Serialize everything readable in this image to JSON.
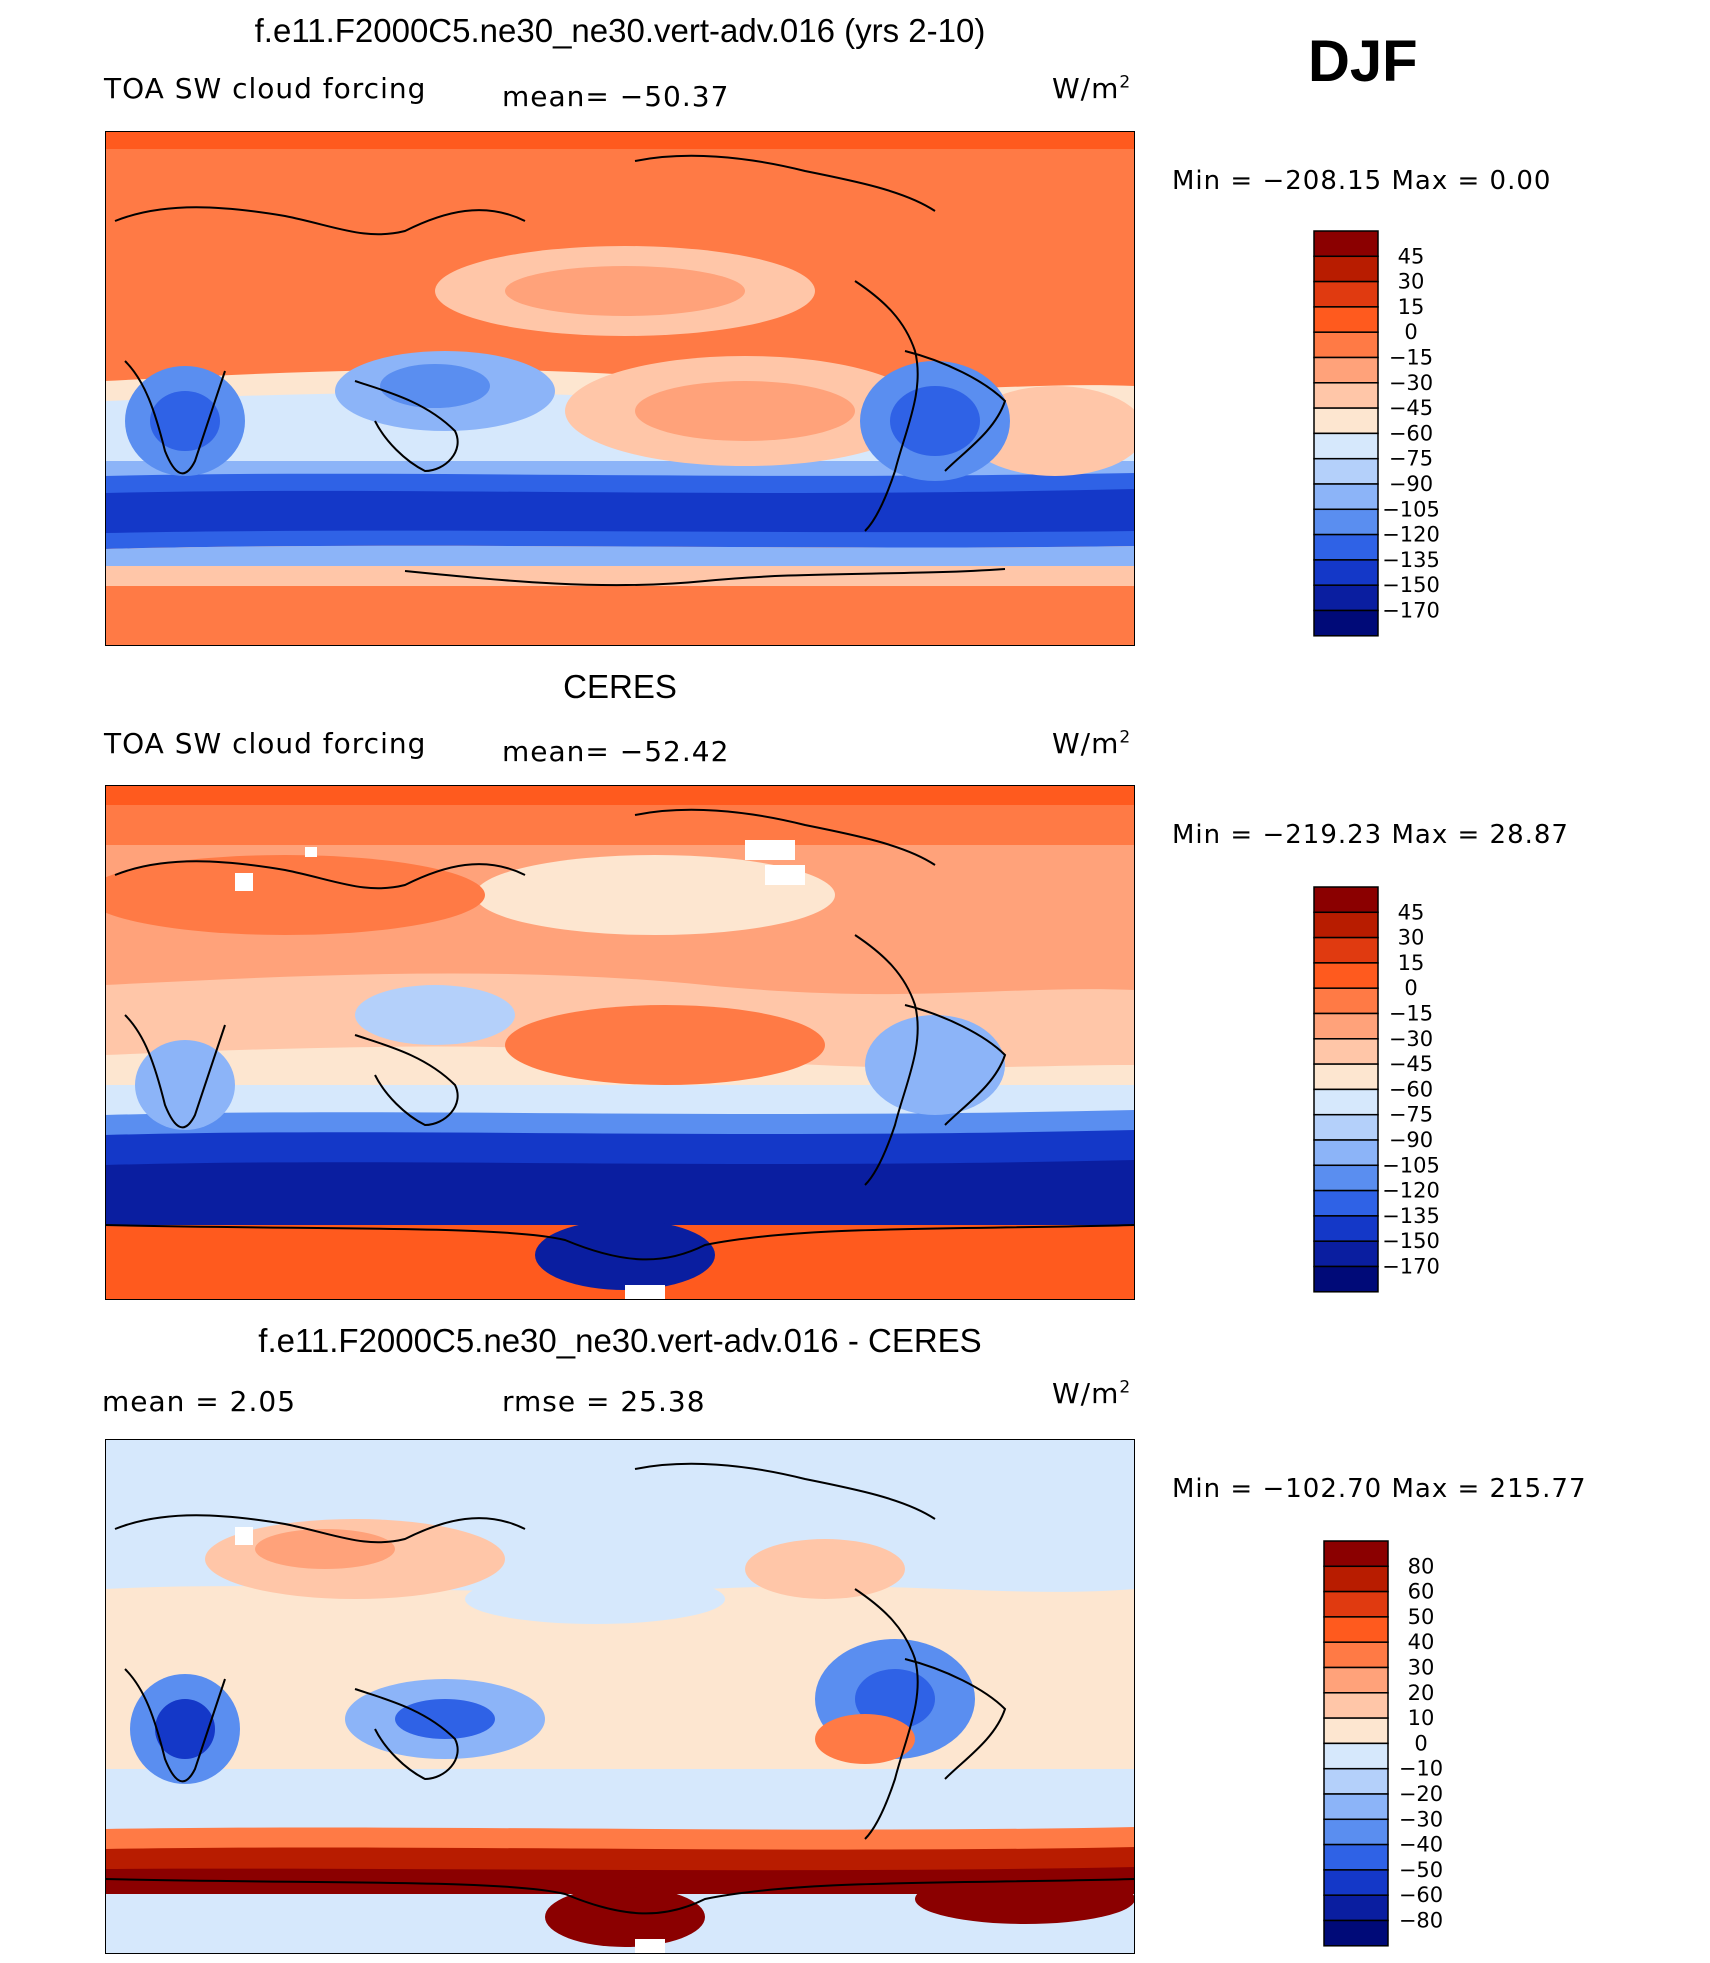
{
  "season": "DJF",
  "colors": {
    "ocean": "#fbe6d8",
    "land_stroke": "#000000"
  },
  "panels": [
    {
      "title": "f.e11.F2000C5.ne30_ne30.vert-adv.016 (yrs 2-10)",
      "left_label": "TOA SW cloud forcing",
      "center_label": "mean= −50.37",
      "units": "W/m",
      "units_sup": "2",
      "minmax": "Min  =  −208.15  Max  =     0.00",
      "colorbar": {
        "labels": [
          "45",
          "30",
          "15",
          "0",
          "−15",
          "−30",
          "−45",
          "−60",
          "−75",
          "−90",
          "−105",
          "−120",
          "−135",
          "−150",
          "−170"
        ],
        "colors": [
          "#8b0000",
          "#b81c00",
          "#e03a10",
          "#ff5a1e",
          "#ff7a45",
          "#ffa27a",
          "#ffc6a8",
          "#fde6d0",
          "#d6e8fc",
          "#b4d0fa",
          "#8cb4f8",
          "#5a8ef0",
          "#2f62e6",
          "#1438c8",
          "#0a1ea0",
          "#000a78"
        ]
      }
    },
    {
      "title": "CERES",
      "left_label": "TOA SW cloud forcing",
      "center_label": "mean= −52.42",
      "units": "W/m",
      "units_sup": "2",
      "minmax": "Min  =  −219.23  Max  =   28.87",
      "colorbar": {
        "labels": [
          "45",
          "30",
          "15",
          "0",
          "−15",
          "−30",
          "−45",
          "−60",
          "−75",
          "−90",
          "−105",
          "−120",
          "−135",
          "−150",
          "−170"
        ],
        "colors": [
          "#8b0000",
          "#b81c00",
          "#e03a10",
          "#ff5a1e",
          "#ff7a45",
          "#ffa27a",
          "#ffc6a8",
          "#fde6d0",
          "#d6e8fc",
          "#b4d0fa",
          "#8cb4f8",
          "#5a8ef0",
          "#2f62e6",
          "#1438c8",
          "#0a1ea0",
          "#000a78"
        ]
      }
    },
    {
      "title": "f.e11.F2000C5.ne30_ne30.vert-adv.016 - CERES",
      "left_label": "mean =     2.05",
      "center_label": "rmse  =   25.38",
      "units": "W/m",
      "units_sup": "2",
      "minmax": "Min  =  −102.70  Max  =  215.77",
      "colorbar": {
        "labels": [
          "80",
          "60",
          "50",
          "40",
          "30",
          "20",
          "10",
          "0",
          "−10",
          "−20",
          "−30",
          "−40",
          "−50",
          "−60",
          "−80"
        ],
        "colors": [
          "#8b0000",
          "#b81c00",
          "#e03a10",
          "#ff5a1e",
          "#ff7a45",
          "#ffa27a",
          "#ffc6a8",
          "#fde6d0",
          "#d6e8fc",
          "#b4d0fa",
          "#8cb4f8",
          "#5a8ef0",
          "#2f62e6",
          "#1438c8",
          "#0a1ea0",
          "#000a78"
        ]
      }
    }
  ]
}
